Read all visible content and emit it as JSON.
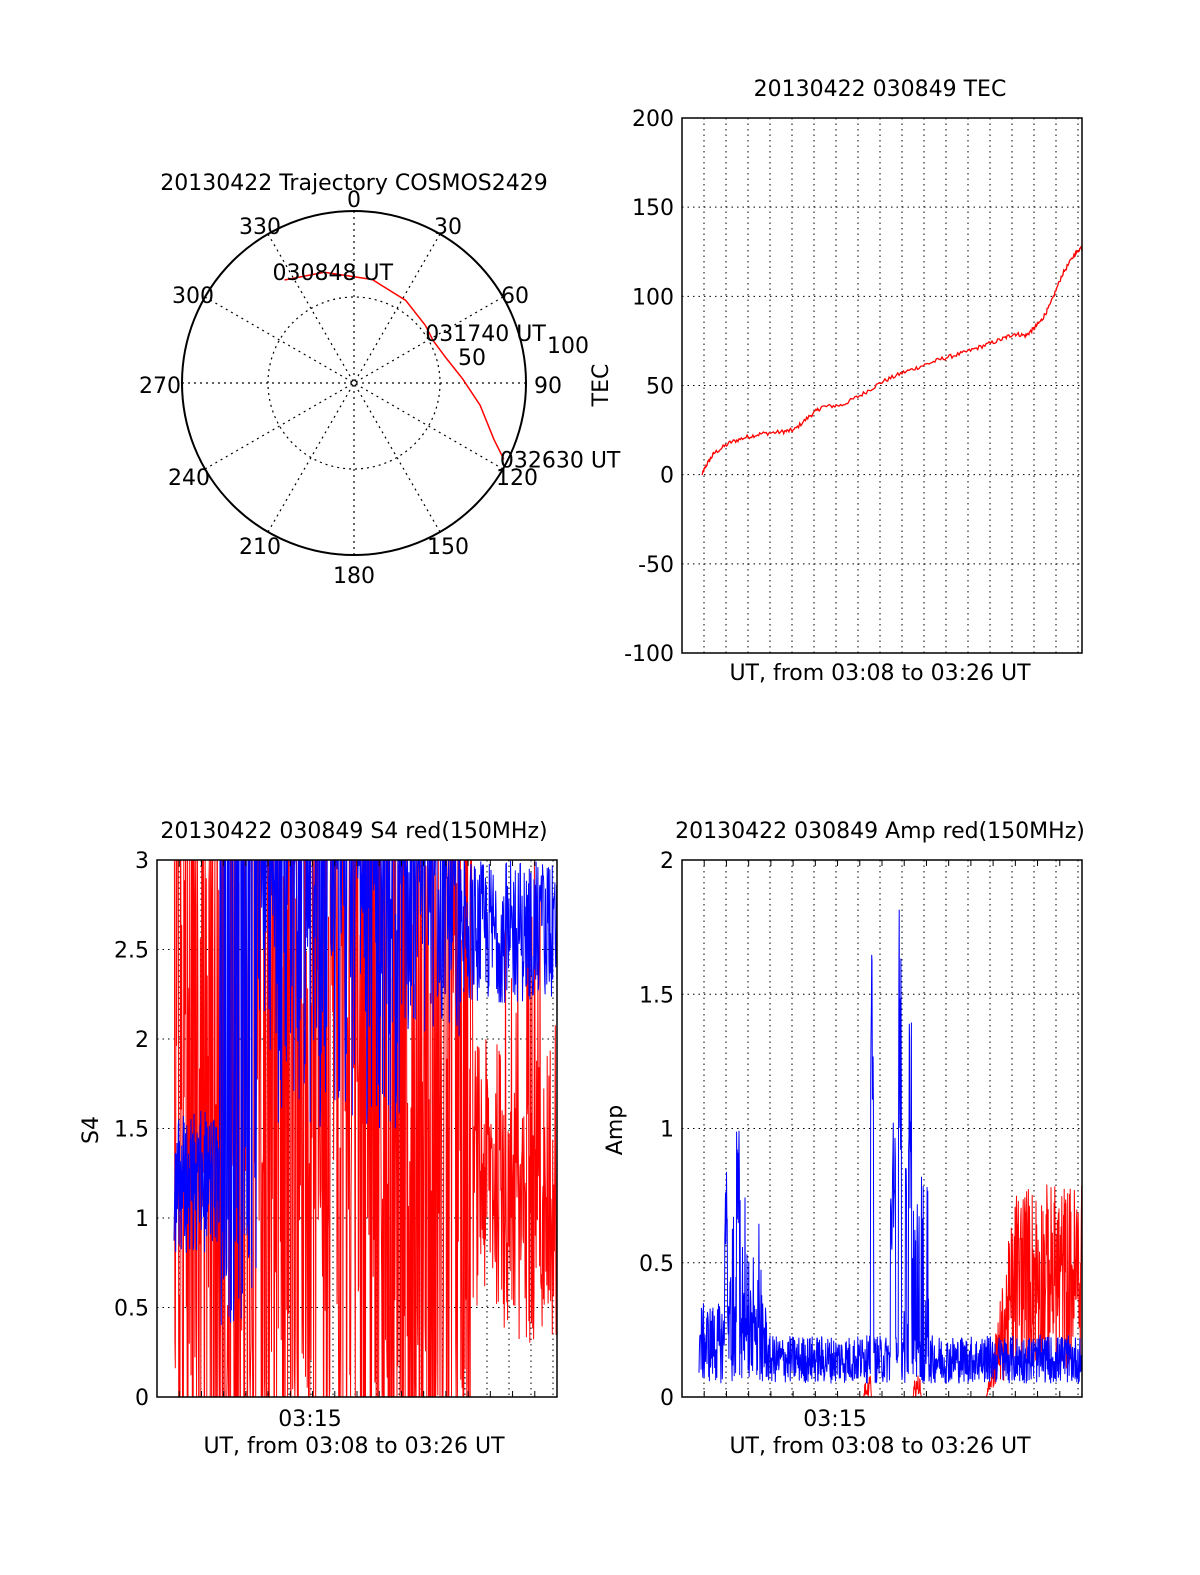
{
  "chart_data": [
    {
      "type": "polar",
      "title": "20130422 Trajectory COSMOS2429",
      "angle_labels": [
        "0",
        "30",
        "60",
        "90",
        "120",
        "150",
        "180",
        "210",
        "240",
        "270",
        "300",
        "330"
      ],
      "radial_labels": [
        "50",
        "100"
      ],
      "grid": true,
      "trajectory": {
        "color": "#ff0000",
        "points": [
          {
            "azimuth": 326,
            "elevation": 25
          },
          {
            "azimuth": 345,
            "elevation": 30
          },
          {
            "azimuth": 10,
            "elevation": 35
          },
          {
            "azimuth": 32,
            "elevation": 39
          },
          {
            "azimuth": 51,
            "elevation": 42
          },
          {
            "azimuth": 62,
            "elevation": 43
          },
          {
            "azimuth": 75,
            "elevation": 40
          },
          {
            "azimuth": 88,
            "elevation": 33
          },
          {
            "azimuth": 100,
            "elevation": 23
          },
          {
            "azimuth": 112,
            "elevation": 11
          },
          {
            "azimuth": 117,
            "elevation": 2
          }
        ]
      },
      "annotations": [
        {
          "text": "030848 UT",
          "azimuth": 326,
          "elevation": 25
        },
        {
          "text": "031740 UT",
          "azimuth": 62,
          "elevation": 43
        },
        {
          "text": "032630 UT",
          "azimuth": 117,
          "elevation": 2
        }
      ]
    },
    {
      "type": "line",
      "title": "20130422 030849 TEC",
      "xlabel": "UT, from 03:08 to 03:26 UT",
      "ylabel": "TEC",
      "ylim": [
        -100,
        200
      ],
      "yticks": [
        "-100",
        "-50",
        "0",
        "50",
        "100",
        "150",
        "200"
      ],
      "grid": true,
      "series": [
        {
          "color": "#ff0000",
          "x": [
            0.05,
            0.06,
            0.08,
            0.12,
            0.16,
            0.2,
            0.25,
            0.28,
            0.32,
            0.35,
            0.4,
            0.45,
            0.5,
            0.55,
            0.6,
            0.65,
            0.7,
            0.75,
            0.8,
            0.83,
            0.86,
            0.88,
            0.9,
            0.92,
            0.95,
            0.98,
            1.0
          ],
          "values": [
            0,
            5,
            12,
            18,
            21,
            23,
            24,
            25,
            33,
            38,
            39,
            45,
            52,
            57,
            61,
            65,
            68,
            72,
            76,
            79,
            78,
            82,
            87,
            95,
            112,
            123,
            128
          ]
        }
      ]
    },
    {
      "type": "line",
      "title": "20130422 030849 S4 red(150MHz)",
      "xlabel": "UT, from 03:08 to 03:26 UT",
      "ylabel": "S4",
      "ylim": [
        0,
        3
      ],
      "yticks": [
        "0",
        "0.5",
        "1",
        "1.5",
        "2",
        "2.5",
        "3"
      ],
      "xticklabels": [
        "03:15"
      ],
      "grid": true,
      "series": [
        {
          "color": "#ff0000",
          "values": []
        },
        {
          "color": "#0000ff",
          "values": []
        }
      ]
    },
    {
      "type": "line",
      "title": "20130422 030849 Amp red(150MHz)",
      "xlabel": "UT, from 03:08 to 03:26 UT",
      "ylabel": "Amp",
      "ylim": [
        0,
        2
      ],
      "yticks": [
        "0",
        "0.5",
        "1",
        "1.5",
        "2"
      ],
      "xticklabels": [
        "03:15"
      ],
      "grid": true,
      "series": [
        {
          "color": "#ff0000",
          "values": []
        },
        {
          "color": "#0000ff",
          "values": []
        }
      ],
      "peaks": [
        {
          "x": 0.11,
          "value": 0.9
        },
        {
          "x": 0.14,
          "value": 1.0
        },
        {
          "x": 0.475,
          "value": 1.8
        },
        {
          "x": 0.525,
          "value": 0.8
        },
        {
          "x": 0.53,
          "value": 1.05
        },
        {
          "x": 0.545,
          "value": 1.5
        },
        {
          "x": 0.57,
          "value": 1.15
        }
      ]
    }
  ]
}
